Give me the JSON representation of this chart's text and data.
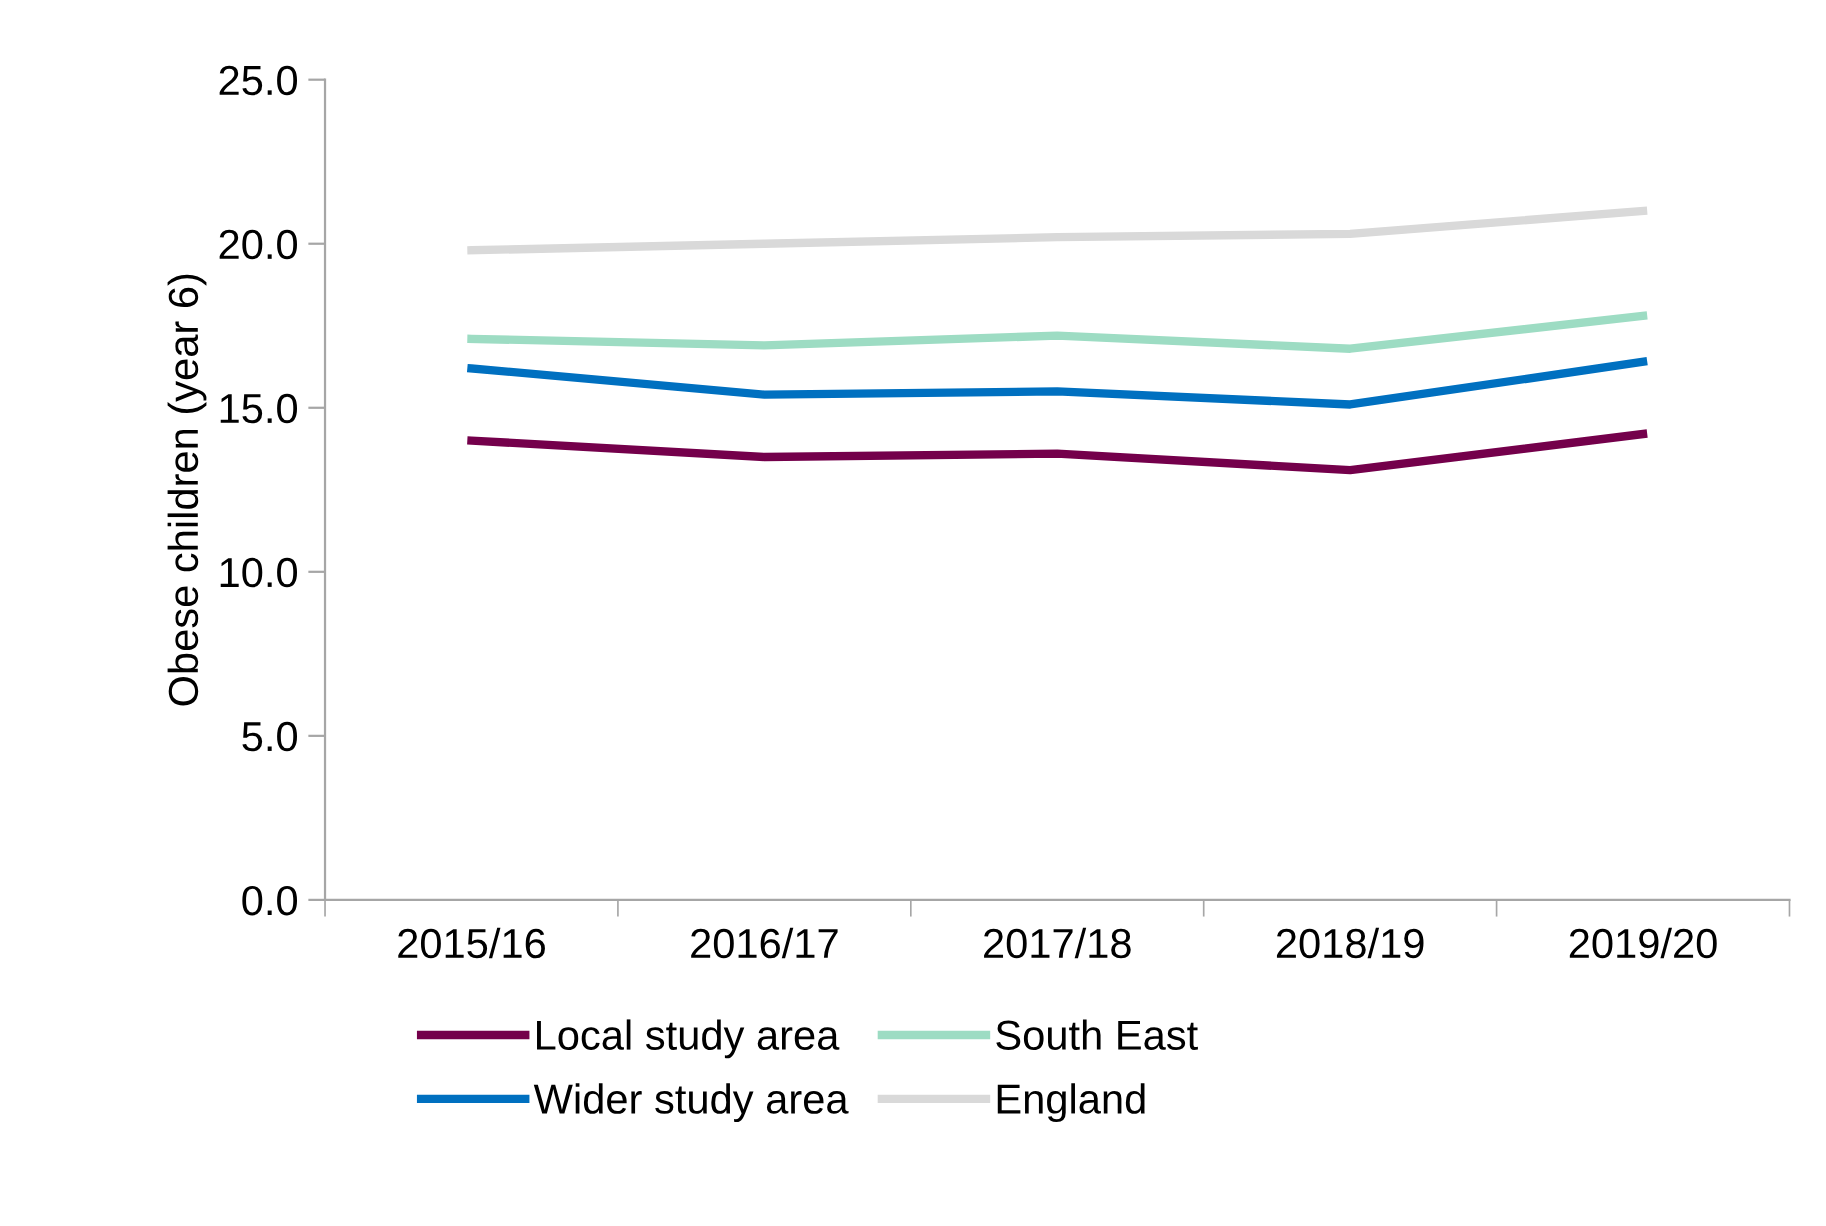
{
  "chart_data": {
    "type": "line",
    "ylabel": "Obese children (year 6)",
    "categories": [
      "2015/16",
      "2016/17",
      "2017/18",
      "2018/19",
      "2019/20"
    ],
    "series": [
      {
        "name": "Local study area",
        "color": "#74004b",
        "values": [
          14.0,
          13.5,
          13.6,
          13.1,
          14.2
        ]
      },
      {
        "name": "Wider study area",
        "color": "#0070c0",
        "values": [
          16.2,
          15.4,
          15.5,
          15.1,
          16.4
        ]
      },
      {
        "name": "South East",
        "color": "#9ddcc3",
        "values": [
          17.1,
          16.9,
          17.2,
          16.8,
          17.8
        ]
      },
      {
        "name": "England",
        "color": "#d9d9d9",
        "values": [
          19.8,
          20.0,
          20.2,
          20.3,
          21.0
        ]
      }
    ],
    "ylim": [
      0,
      25
    ],
    "yticks": [
      {
        "value": 0,
        "label": "0.0"
      },
      {
        "value": 5,
        "label": "5.0"
      },
      {
        "value": 10,
        "label": "10.0"
      },
      {
        "value": 15,
        "label": "15.0"
      },
      {
        "value": 20,
        "label": "20.0"
      },
      {
        "value": 25,
        "label": "25.0"
      }
    ],
    "grid": false,
    "legend": "bottom",
    "marker": "none",
    "line_style": "solid"
  }
}
